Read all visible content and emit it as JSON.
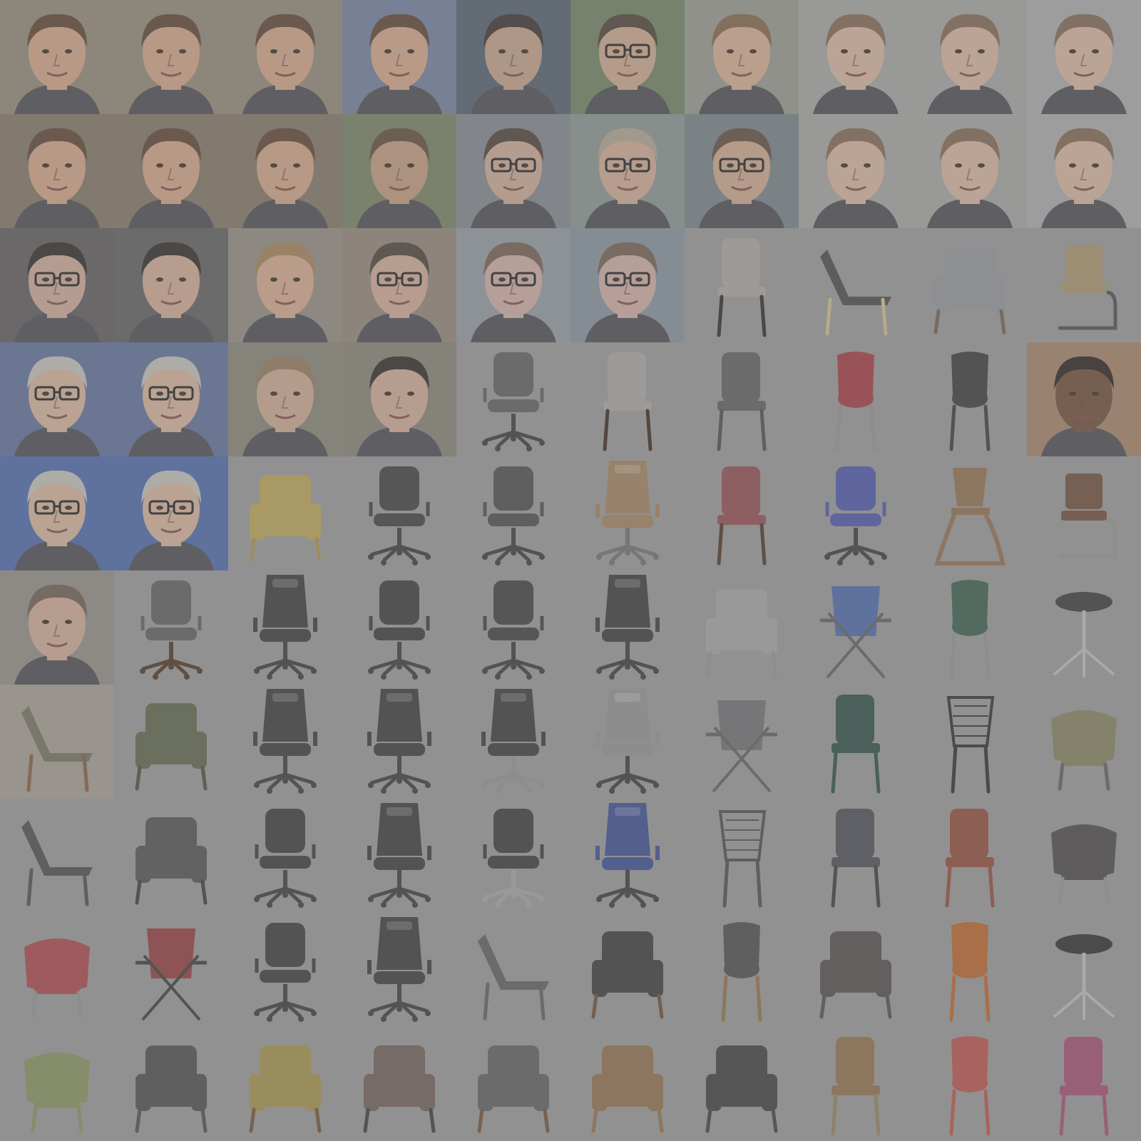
{
  "grid": {
    "columns": 10,
    "rows": 10,
    "tiles": [
      {
        "kind": "face",
        "skin": "#c49a7e",
        "hair": "#5a4232",
        "bg": "#8a8070",
        "glasses": false
      },
      {
        "kind": "face",
        "skin": "#c49a7e",
        "hair": "#5a4232",
        "bg": "#8a8070",
        "glasses": false
      },
      {
        "kind": "face",
        "skin": "#c49a7e",
        "hair": "#5a4232",
        "bg": "#8a8070",
        "glasses": false
      },
      {
        "kind": "face",
        "skin": "#c79b80",
        "hair": "#5a4232",
        "bg": "#6b7894",
        "glasses": false
      },
      {
        "kind": "face",
        "skin": "#b79882",
        "hair": "#3a332e",
        "bg": "#4f5a69",
        "glasses": false
      },
      {
        "kind": "face",
        "skin": "#bf9d86",
        "hair": "#4a3f35",
        "bg": "#6a7a5a",
        "glasses": true
      },
      {
        "kind": "face",
        "skin": "#c9a28a",
        "hair": "#7a6046",
        "bg": "#8c8f86",
        "glasses": false
      },
      {
        "kind": "face",
        "skin": "#c9aa96",
        "hair": "#7a634e",
        "bg": "#9a9a98",
        "glasses": false
      },
      {
        "kind": "face",
        "skin": "#c9aa96",
        "hair": "#7a634e",
        "bg": "#9a9a98",
        "glasses": false
      },
      {
        "kind": "face",
        "skin": "#c9aa96",
        "hair": "#7a634e",
        "bg": "#a0a0a0",
        "glasses": false
      },
      {
        "kind": "face",
        "skin": "#c49a7e",
        "hair": "#5a4232",
        "bg": "#7a6e60",
        "glasses": false
      },
      {
        "kind": "face",
        "skin": "#c49a7e",
        "hair": "#5a4232",
        "bg": "#7a6e60",
        "glasses": false
      },
      {
        "kind": "face",
        "skin": "#c49a7e",
        "hair": "#5a4232",
        "bg": "#7a6e60",
        "glasses": false
      },
      {
        "kind": "face",
        "skin": "#b89078",
        "hair": "#5c4838",
        "bg": "#6f7a5e",
        "glasses": false
      },
      {
        "kind": "face",
        "skin": "#bfa08c",
        "hair": "#4a3f35",
        "bg": "#7a7f84",
        "glasses": true
      },
      {
        "kind": "face",
        "skin": "#c3a08a",
        "hair": "#a69a88",
        "bg": "#808c88",
        "glasses": true
      },
      {
        "kind": "face",
        "skin": "#bf9d86",
        "hair": "#5a4a3d",
        "bg": "#6f7a7f",
        "glasses": true
      },
      {
        "kind": "face",
        "skin": "#c9aa96",
        "hair": "#7a634e",
        "bg": "#9a9a98",
        "glasses": false
      },
      {
        "kind": "face",
        "skin": "#c9aa96",
        "hair": "#7a634e",
        "bg": "#9a9a98",
        "glasses": false
      },
      {
        "kind": "face",
        "skin": "#c9aa96",
        "hair": "#7a634e",
        "bg": "#a0a0a0",
        "glasses": false
      },
      {
        "kind": "face",
        "skin": "#c0a08e",
        "hair": "#2e2a28",
        "bg": "#5a5658",
        "glasses": true
      },
      {
        "kind": "face",
        "skin": "#c4a08a",
        "hair": "#2e2a28",
        "bg": "#5a5a5a",
        "glasses": false
      },
      {
        "kind": "face",
        "skin": "#c79e84",
        "hair": "#9a7a52",
        "bg": "#8a847a",
        "glasses": false
      },
      {
        "kind": "face",
        "skin": "#c4a08c",
        "hair": "#4a3f36",
        "bg": "#8a7e72",
        "glasses": true
      },
      {
        "kind": "face",
        "skin": "#c3a39a",
        "hair": "#6e5a4e",
        "bg": "#8a9098",
        "glasses": true
      },
      {
        "kind": "face",
        "skin": "#c3a39a",
        "hair": "#6e5a4e",
        "bg": "#7f8a94",
        "glasses": true
      },
      {
        "kind": "chair",
        "style": "dining",
        "color": "#a09c98",
        "legs": "#2e2a28",
        "bg": "#8f8f8f"
      },
      {
        "kind": "chair",
        "style": "lounge",
        "color": "#4a4744",
        "legs": "#c4b08a",
        "bg": "#8f8f8f"
      },
      {
        "kind": "chair",
        "style": "armchair",
        "color": "#8a8c90",
        "legs": "#6e5a48",
        "bg": "#8f8f8f"
      },
      {
        "kind": "chair",
        "style": "cantilever",
        "color": "#a08a66",
        "legs": "#4a4a4a",
        "bg": "#8f8f8f"
      },
      {
        "kind": "face",
        "skin": "#c8a892",
        "hair": "#b8b4ae",
        "bg": "#5a6a90",
        "glasses": true
      },
      {
        "kind": "face",
        "skin": "#c8a892",
        "hair": "#b8b4ae",
        "bg": "#5a6a90",
        "glasses": true
      },
      {
        "kind": "face",
        "skin": "#bf9e88",
        "hair": "#8a7458",
        "bg": "#7e7c70",
        "glasses": false
      },
      {
        "kind": "face",
        "skin": "#c4a08c",
        "hair": "#2e2a28",
        "bg": "#7e7a70",
        "glasses": false
      },
      {
        "kind": "chair",
        "style": "office",
        "color": "#5a5a5a",
        "legs": "#3a3a3a",
        "bg": "#8f8f8f"
      },
      {
        "kind": "chair",
        "style": "dining",
        "color": "#a09c98",
        "legs": "#3a2a20",
        "bg": "#8f8f8f"
      },
      {
        "kind": "chair",
        "style": "dining",
        "color": "#5a5a5a",
        "legs": "#4a4a4a",
        "bg": "#8f8f8f"
      },
      {
        "kind": "chair",
        "style": "shell",
        "color": "#9a3a40",
        "legs": "#8a8a8a",
        "bg": "#8f8f8f"
      },
      {
        "kind": "chair",
        "style": "shell",
        "color": "#3a3a3a",
        "legs": "#3a3a3a",
        "bg": "#8f8f8f"
      },
      {
        "kind": "face",
        "skin": "#6a4a36",
        "hair": "#2a2220",
        "bg": "#9a7a60",
        "glasses": false
      },
      {
        "kind": "face",
        "skin": "#c8a892",
        "hair": "#b8b4ae",
        "bg": "#4a64a0",
        "glasses": true
      },
      {
        "kind": "face",
        "skin": "#c8a892",
        "hair": "#b8b4ae",
        "bg": "#4a64a0",
        "glasses": true
      },
      {
        "kind": "chair",
        "style": "armchair",
        "color": "#b09a52",
        "legs": "#a08a4a",
        "bg": "#8f8f8f"
      },
      {
        "kind": "chair",
        "style": "office",
        "color": "#3e3e3e",
        "legs": "#3a3a3a",
        "bg": "#8f8f8f"
      },
      {
        "kind": "chair",
        "style": "office",
        "color": "#4a4a4a",
        "legs": "#3a3a3a",
        "bg": "#8f8f8f"
      },
      {
        "kind": "chair",
        "style": "gaming",
        "color": "#9a7a5a",
        "legs": "#6a6a6a",
        "bg": "#8f8f8f"
      },
      {
        "kind": "chair",
        "style": "dining",
        "color": "#8a4a50",
        "legs": "#4a3424",
        "bg": "#8f8f8f"
      },
      {
        "kind": "chair",
        "style": "office",
        "color": "#4a52a0",
        "legs": "#3a3a3a",
        "bg": "#8f8f8f"
      },
      {
        "kind": "chair",
        "style": "highchair",
        "color": "#8a6a4a",
        "legs": "#8a6a4a",
        "bg": "#8f8f8f"
      },
      {
        "kind": "chair",
        "style": "cantilever",
        "color": "#6a4a3a",
        "legs": "#8a8a8a",
        "bg": "#8f8f8f"
      },
      {
        "kind": "face",
        "skin": "#c4a08c",
        "hair": "#6a5a50",
        "bg": "#8a8680",
        "glasses": false
      },
      {
        "kind": "chair",
        "style": "office",
        "color": "#5a5a5c",
        "legs": "#4a3424",
        "bg": "#8f8f8f"
      },
      {
        "kind": "chair",
        "style": "gaming",
        "color": "#3a3a3a",
        "legs": "#3a3a3a",
        "bg": "#8f8f8f"
      },
      {
        "kind": "chair",
        "style": "office",
        "color": "#3a3a3a",
        "legs": "#3a3a3a",
        "bg": "#8f8f8f"
      },
      {
        "kind": "chair",
        "style": "office",
        "color": "#3e3e3e",
        "legs": "#3a3a3a",
        "bg": "#8f8f8f"
      },
      {
        "kind": "chair",
        "style": "gaming",
        "color": "#3a3a3a",
        "legs": "#3a3a3a",
        "bg": "#8f8f8f"
      },
      {
        "kind": "chair",
        "style": "armchair",
        "color": "#9a9a9c",
        "legs": "#8a8a8c",
        "bg": "#8f8f8f"
      },
      {
        "kind": "chair",
        "style": "folding",
        "color": "#4a64a0",
        "legs": "#5a5a5a",
        "bg": "#8f8f8f"
      },
      {
        "kind": "chair",
        "style": "shell",
        "color": "#3a5a4a",
        "legs": "#8a8a8a",
        "bg": "#8f8f8f"
      },
      {
        "kind": "chair",
        "style": "stool",
        "color": "#3a3a3a",
        "legs": "#b0b0b0",
        "bg": "#8f8f8f"
      },
      {
        "kind": "chair",
        "style": "lounge",
        "color": "#6e6a5a",
        "legs": "#7a5a40",
        "bg": "#9a948a"
      },
      {
        "kind": "chair",
        "style": "armchair",
        "color": "#5a6048",
        "legs": "#4a4a3a",
        "bg": "#8f8f8f"
      },
      {
        "kind": "chair",
        "style": "gaming",
        "color": "#3a3a3a",
        "legs": "#3a3a3a",
        "bg": "#8f8f8f"
      },
      {
        "kind": "chair",
        "style": "gaming",
        "color": "#3a3a3a",
        "legs": "#3a3a3a",
        "bg": "#8f8f8f"
      },
      {
        "kind": "chair",
        "style": "gaming",
        "color": "#3a3a3a",
        "legs": "#8a8a8a",
        "bg": "#8f8f8f"
      },
      {
        "kind": "chair",
        "style": "gaming",
        "color": "#8a8a8a",
        "legs": "#3a3a3a",
        "bg": "#8f8f8f"
      },
      {
        "kind": "chair",
        "style": "folding",
        "color": "#6a6a6c",
        "legs": "#5a5a5a",
        "bg": "#8f8f8f"
      },
      {
        "kind": "chair",
        "style": "dining",
        "color": "#2e4a44",
        "legs": "#2e4a44",
        "bg": "#8f8f8f"
      },
      {
        "kind": "chair",
        "style": "wire",
        "color": "#2e2e2e",
        "legs": "#2e2e2e",
        "bg": "#8f8f8f"
      },
      {
        "kind": "chair",
        "style": "tub",
        "color": "#7e7a5a",
        "legs": "#5a5a5a",
        "bg": "#8f8f8f"
      },
      {
        "kind": "chair",
        "style": "lounge",
        "color": "#4a4a4a",
        "legs": "#4a4a4a",
        "bg": "#8f8f8f"
      },
      {
        "kind": "chair",
        "style": "armchair",
        "color": "#4e4e4e",
        "legs": "#3a3a3a",
        "bg": "#8f8f8f"
      },
      {
        "kind": "chair",
        "style": "office",
        "color": "#3a3a3a",
        "legs": "#3a3a3a",
        "bg": "#8f8f8f"
      },
      {
        "kind": "chair",
        "style": "gaming",
        "color": "#3a3a3a",
        "legs": "#3a3a3a",
        "bg": "#8f8f8f"
      },
      {
        "kind": "chair",
        "style": "office",
        "color": "#3a3a3a",
        "legs": "#9a9a9a",
        "bg": "#8f8f8f"
      },
      {
        "kind": "chair",
        "style": "gaming",
        "color": "#3a4a8a",
        "legs": "#3a3a3a",
        "bg": "#8f8f8f"
      },
      {
        "kind": "chair",
        "style": "wire",
        "color": "#4a4a4a",
        "legs": "#4a4a4a",
        "bg": "#8f8f8f"
      },
      {
        "kind": "chair",
        "style": "dining",
        "color": "#4a4c52",
        "legs": "#3a3a3a",
        "bg": "#8f8f8f"
      },
      {
        "kind": "chair",
        "style": "dining",
        "color": "#8a4a38",
        "legs": "#8a4a38",
        "bg": "#8f8f8f"
      },
      {
        "kind": "chair",
        "style": "tub",
        "color": "#4a4648",
        "legs": "#8a8a8a",
        "bg": "#8f8f8f"
      },
      {
        "kind": "chair",
        "style": "tub",
        "color": "#a04448",
        "legs": "#8a8a8a",
        "bg": "#8f8f8f"
      },
      {
        "kind": "chair",
        "style": "folding",
        "color": "#8a3a3c",
        "legs": "#3a3a3a",
        "bg": "#8f8f8f"
      },
      {
        "kind": "chair",
        "style": "office",
        "color": "#3a3a3a",
        "legs": "#3a3a3a",
        "bg": "#8f8f8f"
      },
      {
        "kind": "chair",
        "style": "gaming",
        "color": "#3a3a3a",
        "legs": "#3a3a3a",
        "bg": "#8f8f8f"
      },
      {
        "kind": "chair",
        "style": "lounge",
        "color": "#5a5a5a",
        "legs": "#5a5a5a",
        "bg": "#8f8f8f"
      },
      {
        "kind": "chair",
        "style": "armchair",
        "color": "#3a3a3a",
        "legs": "#6a4a34",
        "bg": "#8f8f8f"
      },
      {
        "kind": "chair",
        "style": "shell",
        "color": "#4a4a4a",
        "legs": "#8a6a4a",
        "bg": "#8f8f8f"
      },
      {
        "kind": "chair",
        "style": "armchair",
        "color": "#4e4a48",
        "legs": "#4e4a48",
        "bg": "#8f8f8f"
      },
      {
        "kind": "chair",
        "style": "shell",
        "color": "#b0602a",
        "legs": "#b0602a",
        "bg": "#8f8f8f"
      },
      {
        "kind": "chair",
        "style": "stool",
        "color": "#2e2e2e",
        "legs": "#b0b0b0",
        "bg": "#8f8f8f"
      },
      {
        "kind": "chair",
        "style": "tub",
        "color": "#7e8a5a",
        "legs": "#7e8a5a",
        "bg": "#8f8f8f"
      },
      {
        "kind": "chair",
        "style": "armchair",
        "color": "#4a4a4a",
        "legs": "#4a4a4a",
        "bg": "#8f8f8f"
      },
      {
        "kind": "chair",
        "style": "armchair",
        "color": "#9a8a48",
        "legs": "#6a4e34",
        "bg": "#8f8f8f"
      },
      {
        "kind": "chair",
        "style": "armchair",
        "color": "#6a5a54",
        "legs": "#3a3a3a",
        "bg": "#8f8f8f"
      },
      {
        "kind": "chair",
        "style": "armchair",
        "color": "#5a5a5a",
        "legs": "#6a4e34",
        "bg": "#8f8f8f"
      },
      {
        "kind": "chair",
        "style": "armchair",
        "color": "#8a6a4a",
        "legs": "#8a6a4a",
        "bg": "#8f8f8f"
      },
      {
        "kind": "chair",
        "style": "armchair",
        "color": "#3e3e3e",
        "legs": "#3e3e3e",
        "bg": "#8f8f8f"
      },
      {
        "kind": "chair",
        "style": "dining",
        "color": "#8a6a48",
        "legs": "#8a7a5a",
        "bg": "#8f8f8f"
      },
      {
        "kind": "chair",
        "style": "shell",
        "color": "#b0504a",
        "legs": "#b0504a",
        "bg": "#8f8f8f"
      },
      {
        "kind": "chair",
        "style": "dining",
        "color": "#9a4a6a",
        "legs": "#9a4a6a",
        "bg": "#8f8f8f"
      }
    ]
  }
}
